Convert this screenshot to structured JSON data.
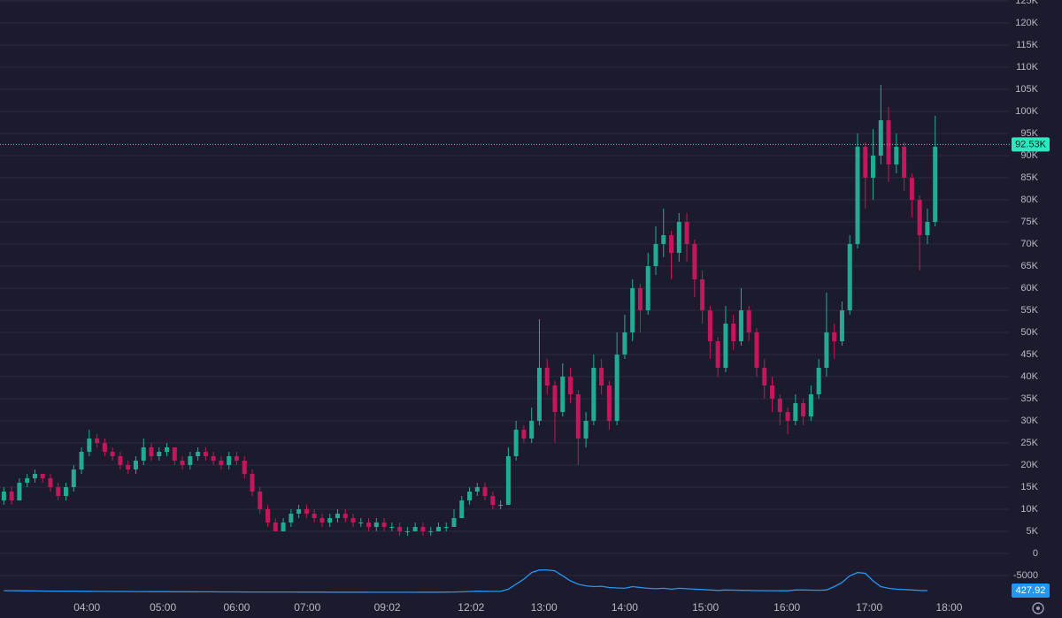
{
  "chart_data": {
    "type": "candlestick",
    "up_color": "#22ab94",
    "down_color": "#c2185b",
    "grid": true,
    "ylim": [
      -10000,
      125000
    ],
    "xlim": [
      -0.5,
      129.5
    ],
    "yticks": [
      -5000,
      {
        "value": 0,
        "label": "0"
      },
      {
        "value": 5000,
        "label": "5K"
      },
      {
        "value": 10000,
        "label": "10K"
      },
      {
        "value": 15000,
        "label": "15K"
      },
      {
        "value": 20000,
        "label": "20K"
      },
      {
        "value": 25000,
        "label": "25K"
      },
      {
        "value": 30000,
        "label": "30K"
      },
      {
        "value": 35000,
        "label": "35K"
      },
      {
        "value": 40000,
        "label": "40K"
      },
      {
        "value": 45000,
        "label": "45K"
      },
      {
        "value": 50000,
        "label": "50K"
      },
      {
        "value": 55000,
        "label": "55K"
      },
      {
        "value": 60000,
        "label": "60K"
      },
      {
        "value": 65000,
        "label": "65K"
      },
      {
        "value": 70000,
        "label": "70K"
      },
      {
        "value": 75000,
        "label": "75K"
      },
      {
        "value": 80000,
        "label": "80K"
      },
      {
        "value": 85000,
        "label": "85K"
      },
      {
        "value": 90000,
        "label": "90K"
      },
      {
        "value": 95000,
        "label": "95K"
      },
      {
        "value": 100000,
        "label": "100K"
      },
      {
        "value": 105000,
        "label": "105K"
      },
      {
        "value": 110000,
        "label": "110K"
      },
      {
        "value": 115000,
        "label": "115K"
      },
      {
        "value": 120000,
        "label": "120K"
      },
      {
        "value": 125000,
        "label": "125K"
      }
    ],
    "xticks": [
      {
        "value": 10.7,
        "label": "04:00"
      },
      {
        "value": 20.5,
        "label": "05:00"
      },
      {
        "value": 30,
        "label": "06:00"
      },
      {
        "value": 39.1,
        "label": "07:00"
      },
      {
        "value": 49.4,
        "label": "09:02"
      },
      {
        "value": 60.2,
        "label": "12:02"
      },
      {
        "value": 69.6,
        "label": "13:00"
      },
      {
        "value": 80,
        "label": "14:00"
      },
      {
        "value": 90.4,
        "label": "15:00"
      },
      {
        "value": 100.9,
        "label": "16:00"
      },
      {
        "value": 111.5,
        "label": "17:00"
      },
      {
        "value": 121.8,
        "label": "18:00"
      }
    ],
    "current_price": {
      "value": 92530,
      "label": "92.53K",
      "color": "#2ee6c0"
    },
    "candles": [
      [
        12000,
        15000,
        11000,
        14000
      ],
      [
        14000,
        15000,
        11000,
        12000
      ],
      [
        12000,
        17000,
        12000,
        16000
      ],
      [
        16000,
        18000,
        15000,
        17000
      ],
      [
        17000,
        19000,
        16000,
        18000
      ],
      [
        18000,
        18000,
        16000,
        17000
      ],
      [
        17000,
        18000,
        14000,
        15000
      ],
      [
        15000,
        16000,
        12000,
        13000
      ],
      [
        13000,
        16000,
        12000,
        15000
      ],
      [
        15000,
        20000,
        14000,
        19000
      ],
      [
        19000,
        24000,
        18000,
        23000
      ],
      [
        23000,
        28000,
        22000,
        26000
      ],
      [
        26000,
        27000,
        24000,
        25000
      ],
      [
        25000,
        26000,
        22000,
        23000
      ],
      [
        23000,
        24000,
        21000,
        22000
      ],
      [
        22000,
        23000,
        19000,
        20000
      ],
      [
        20000,
        21000,
        18000,
        19000
      ],
      [
        19000,
        22000,
        18000,
        21000
      ],
      [
        21000,
        26000,
        20000,
        24000
      ],
      [
        24000,
        25000,
        21000,
        22000
      ],
      [
        22000,
        24000,
        21000,
        23000
      ],
      [
        23000,
        25000,
        22000,
        24000
      ],
      [
        24000,
        24000,
        20000,
        21000
      ],
      [
        21000,
        22000,
        19000,
        20000
      ],
      [
        20000,
        23000,
        19000,
        22000
      ],
      [
        22000,
        24000,
        21000,
        23000
      ],
      [
        23000,
        24000,
        21000,
        22000
      ],
      [
        22000,
        23000,
        20000,
        21000
      ],
      [
        21000,
        22000,
        19000,
        20000
      ],
      [
        20000,
        23000,
        19000,
        22000
      ],
      [
        22000,
        23000,
        20000,
        21000
      ],
      [
        21000,
        22000,
        17000,
        18000
      ],
      [
        18000,
        19000,
        13000,
        14000
      ],
      [
        14000,
        15000,
        9000,
        10000
      ],
      [
        10000,
        11000,
        6000,
        7000
      ],
      [
        7000,
        8000,
        5000,
        5000
      ],
      [
        5000,
        8000,
        5000,
        7000
      ],
      [
        7000,
        10000,
        6000,
        9000
      ],
      [
        9000,
        11000,
        8000,
        10000
      ],
      [
        10000,
        11000,
        8000,
        9000
      ],
      [
        9000,
        10000,
        7000,
        8000
      ],
      [
        8000,
        9000,
        6000,
        7000
      ],
      [
        7000,
        9000,
        6000,
        8000
      ],
      [
        8000,
        10000,
        7000,
        9000
      ],
      [
        9000,
        10000,
        7000,
        8000
      ],
      [
        8000,
        9000,
        6000,
        7000
      ],
      [
        7000,
        8000,
        6000,
        7000
      ],
      [
        7000,
        8000,
        5000,
        6000
      ],
      [
        6000,
        8000,
        5000,
        7000
      ],
      [
        7000,
        8000,
        5000,
        6000
      ],
      [
        6000,
        7000,
        5000,
        6000
      ],
      [
        6000,
        7000,
        4000,
        5000
      ],
      [
        5000,
        6000,
        4000,
        5000
      ],
      [
        5000,
        7000,
        5000,
        6000
      ],
      [
        6000,
        7000,
        4000,
        5000
      ],
      [
        5000,
        6000,
        4000,
        5000
      ],
      [
        5000,
        7000,
        5000,
        6000
      ],
      [
        6000,
        7000,
        5000,
        6000
      ],
      [
        6000,
        10000,
        6000,
        8000
      ],
      [
        8000,
        13000,
        8000,
        12000
      ],
      [
        12000,
        15000,
        11000,
        14000
      ],
      [
        14000,
        16000,
        13000,
        15000
      ],
      [
        15000,
        16000,
        12000,
        13000
      ],
      [
        13000,
        14000,
        10000,
        11000
      ],
      [
        11000,
        12000,
        10000,
        11000
      ],
      [
        11000,
        24000,
        11000,
        22000
      ],
      [
        22000,
        30000,
        21000,
        28000
      ],
      [
        28000,
        29000,
        25000,
        26000
      ],
      [
        26000,
        33000,
        25000,
        30000
      ],
      [
        30000,
        53000,
        29000,
        42000
      ],
      [
        42000,
        44000,
        36000,
        38000
      ],
      [
        38000,
        39000,
        25000,
        32000
      ],
      [
        32000,
        43000,
        31000,
        40000
      ],
      [
        40000,
        42000,
        34000,
        36000
      ],
      [
        36000,
        37000,
        20000,
        26000
      ],
      [
        26000,
        32000,
        24000,
        30000
      ],
      [
        30000,
        45000,
        29000,
        42000
      ],
      [
        42000,
        44000,
        36000,
        38000
      ],
      [
        38000,
        39000,
        28000,
        30000
      ],
      [
        30000,
        50000,
        29000,
        45000
      ],
      [
        45000,
        54000,
        44000,
        50000
      ],
      [
        50000,
        62000,
        48000,
        60000
      ],
      [
        60000,
        61000,
        50000,
        55000
      ],
      [
        55000,
        68000,
        54000,
        65000
      ],
      [
        65000,
        74000,
        63000,
        70000
      ],
      [
        70000,
        78000,
        67000,
        72000
      ],
      [
        72000,
        73000,
        62000,
        68000
      ],
      [
        68000,
        77000,
        66000,
        75000
      ],
      [
        75000,
        77000,
        66000,
        70000
      ],
      [
        70000,
        71000,
        58000,
        62000
      ],
      [
        62000,
        64000,
        52000,
        55000
      ],
      [
        55000,
        56000,
        44000,
        48000
      ],
      [
        48000,
        49000,
        40000,
        42000
      ],
      [
        42000,
        56000,
        41000,
        52000
      ],
      [
        52000,
        54000,
        46000,
        48000
      ],
      [
        48000,
        60000,
        47000,
        55000
      ],
      [
        55000,
        56000,
        48000,
        50000
      ],
      [
        50000,
        51000,
        40000,
        42000
      ],
      [
        42000,
        44000,
        35000,
        38000
      ],
      [
        38000,
        40000,
        32000,
        35000
      ],
      [
        35000,
        36000,
        29000,
        32000
      ],
      [
        32000,
        33000,
        27000,
        30000
      ],
      [
        30000,
        36000,
        29000,
        34000
      ],
      [
        34000,
        35000,
        29000,
        31000
      ],
      [
        31000,
        38000,
        30000,
        36000
      ],
      [
        36000,
        44000,
        35000,
        42000
      ],
      [
        42000,
        59000,
        40000,
        50000
      ],
      [
        50000,
        52000,
        44000,
        48000
      ],
      [
        48000,
        57000,
        47000,
        55000
      ],
      [
        55000,
        72000,
        54000,
        70000
      ],
      [
        70000,
        95000,
        69000,
        92000
      ],
      [
        92000,
        93000,
        78000,
        85000
      ],
      [
        85000,
        96000,
        80000,
        90000
      ],
      [
        90000,
        106000,
        88000,
        98000
      ],
      [
        98000,
        101000,
        84000,
        88000
      ],
      [
        88000,
        95000,
        86000,
        92000
      ],
      [
        92000,
        93000,
        82000,
        85000
      ],
      [
        85000,
        86000,
        76000,
        80000
      ],
      [
        80000,
        81000,
        64000,
        72000
      ],
      [
        72000,
        78000,
        70000,
        75000
      ],
      [
        75000,
        99000,
        74000,
        92000
      ]
    ],
    "indicator": {
      "color": "#2196f3",
      "y2lim": [
        0,
        5000
      ],
      "values": [
        420,
        410,
        400,
        390,
        380,
        370,
        360,
        360,
        350,
        350,
        340,
        340,
        330,
        330,
        320,
        320,
        320,
        310,
        310,
        300,
        300,
        300,
        290,
        290,
        290,
        280,
        280,
        280,
        270,
        270,
        270,
        260,
        260,
        260,
        250,
        250,
        250,
        250,
        240,
        240,
        240,
        240,
        230,
        230,
        230,
        230,
        230,
        220,
        220,
        220,
        220,
        220,
        220,
        220,
        230,
        230,
        230,
        240,
        250,
        280,
        320,
        350,
        340,
        330,
        330,
        600,
        1200,
        1800,
        2600,
        2900,
        2900,
        2800,
        2200,
        1600,
        1200,
        1000,
        900,
        950,
        800,
        750,
        700,
        900,
        800,
        700,
        650,
        700,
        600,
        700,
        650,
        600,
        550,
        500,
        450,
        500,
        480,
        460,
        450,
        430,
        420,
        410,
        400,
        400,
        500,
        500,
        480,
        470,
        500,
        900,
        1400,
        2200,
        2600,
        2500,
        1600,
        900,
        700,
        600,
        550,
        500,
        450,
        427.92
      ]
    }
  }
}
